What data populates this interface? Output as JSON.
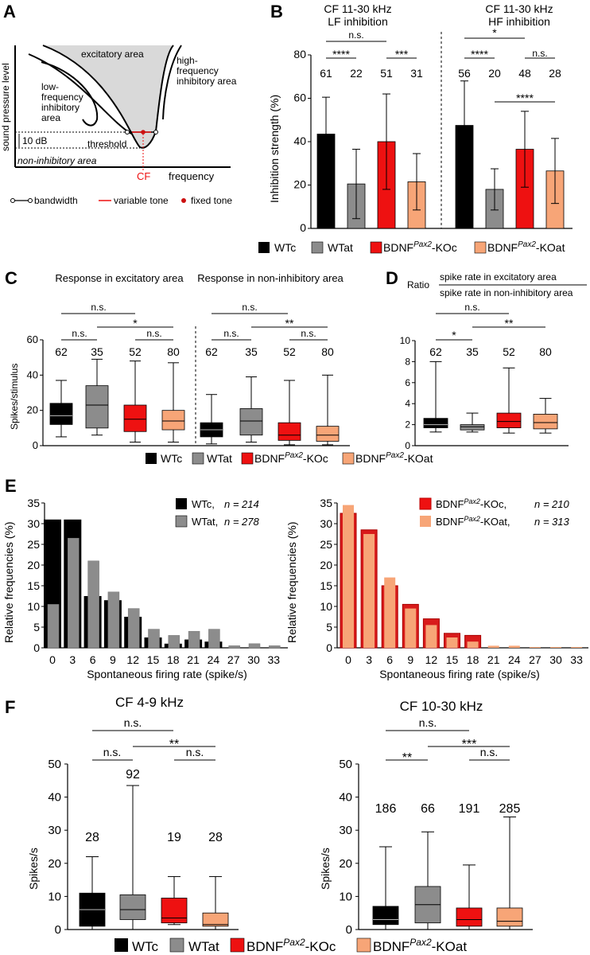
{
  "colors": {
    "wtc": "#000000",
    "wtat": "#8c8c8c",
    "kocon": "#ee1111",
    "koat": "#f7a577",
    "gray_area": "#d9d9d9",
    "grid": "#000000"
  },
  "panelA": {
    "letter": "A",
    "ylabel": "sound pressure level",
    "xlabel": "frequency",
    "excitatory": "excitatory area",
    "hf_line1": "high-",
    "hf_line2": "frequency",
    "hf_line3": "inhibitory area",
    "lf_line1": "low-",
    "lf_line2": "frequency",
    "lf_line3": "inhibitory",
    "lf_line4": "area",
    "threshold": "threshold",
    "db": "10 dB",
    "noninhib": "non-inhibitory area",
    "cf": "CF",
    "leg_bw": "bandwidth",
    "leg_var": "variable tone",
    "leg_fix": "fixed tone"
  },
  "panelB": {
    "letter": "B",
    "t1a": "CF 11-30 kHz",
    "t1b": "LF inhibition",
    "t2a": "CF 11-30 kHz",
    "t2b": "HF inhibition",
    "ylabel": "Inhibition strength (%)",
    "yticks": [
      "0",
      "20",
      "40",
      "60",
      "80"
    ],
    "sig": {
      "ns1": "n.s.",
      "s1": "****",
      "s2": "***",
      "s3": "*",
      "s4": "****",
      "ns2": "n.s.",
      "s5": "****"
    },
    "ns": [
      "61",
      "22",
      "51",
      "31",
      "56",
      "20",
      "48",
      "28"
    ],
    "legend": {
      "wtc": "WTc",
      "wtat": "WTat",
      "koc_pre": "BDNF",
      "koc_sup": "Pax2",
      "koc_post": "-KOc",
      "koat_pre": "BDNF",
      "koat_sup": "Pax2",
      "koat_post": "-KOat"
    }
  },
  "panelC": {
    "letter": "C",
    "t1": "Response in excitatory area",
    "t2": "Response in non-inhibitory area",
    "ylabel": "Spikes/stimulus",
    "yticks": [
      "0",
      "20",
      "40",
      "60"
    ],
    "sig": {
      "a": "n.s.",
      "b": "n.s.",
      "c": "*",
      "d": "n.s.",
      "e": "n.s.",
      "f": "n.s.",
      "g": "**",
      "h": "n.s."
    },
    "ns": [
      "62",
      "35",
      "52",
      "80",
      "62",
      "35",
      "52",
      "80"
    ]
  },
  "panelD": {
    "letter": "D",
    "ratio": "Ratio",
    "num": "spike rate in excitatory area",
    "den": "spike rate in non-inhibitory area",
    "yticks": [
      "0",
      "2",
      "4",
      "6",
      "8",
      "10"
    ],
    "sig": {
      "a": "n.s.",
      "b": "*",
      "c": "**"
    },
    "ns": [
      "62",
      "35",
      "52",
      "80"
    ]
  },
  "legendC": {
    "wtc": "WTc",
    "wtat": "WTat",
    "koc_pre": "BDNF",
    "koc_sup": "Pax2",
    "koc_post": "-KOc",
    "koat_pre": "BDNF",
    "koat_sup": "Pax2",
    "koat_post": "-KOat"
  },
  "panelE": {
    "letter": "E",
    "ylabel": "Relative frequencies (%)",
    "xlabel": "Spontaneous firing rate (spike/s)",
    "left_leg1": "WTc,",
    "left_leg1n": "n = 214",
    "left_leg2": "WTat,",
    "left_leg2n": "n = 278",
    "right_leg1_pre": "BDNF",
    "right_leg1_sup": "Pax2",
    "right_leg1_post": "-KOc,",
    "right_leg1n": "n = 210",
    "right_leg2_pre": "BDNF",
    "right_leg2_sup": "Pax2",
    "right_leg2_post": "-KOat,",
    "right_leg2n": "n = 313",
    "yticks": [
      "0",
      "5",
      "10",
      "15",
      "20",
      "25",
      "30",
      "35"
    ]
  },
  "panelF": {
    "letter": "F",
    "t1": "CF 4-9 kHz",
    "t2": "CF 10-30 kHz",
    "ylabel": "Spikes/s",
    "yticks": [
      "0",
      "10",
      "20",
      "30",
      "40",
      "50"
    ],
    "sig1": {
      "a": "n.s.",
      "b": "n.s.",
      "c": "**",
      "d": "n.s."
    },
    "sig2": {
      "a": "n.s.",
      "b": "**",
      "c": "***",
      "d": "n.s."
    },
    "ns1": [
      "28",
      "92",
      "19",
      "28"
    ],
    "ns2": [
      "186",
      "66",
      "191",
      "285"
    ]
  },
  "legendF": {
    "wtc": "WTc",
    "wtat": "WTat",
    "koc_pre": "BDNF",
    "koc_sup": "Pax2",
    "koc_post": "-KOc",
    "koat_pre": "BDNF",
    "koat_sup": "Pax2",
    "koat_post": "-KOat"
  },
  "chart_data": [
    {
      "type": "bar",
      "title": "CF 11-30 kHz LF inhibition / HF inhibition",
      "ylabel": "Inhibition strength (%)",
      "ylim": [
        0,
        80
      ],
      "categories": [
        "WTc",
        "WTat",
        "BDNF Pax2-KOc",
        "BDNF Pax2-KOat"
      ],
      "series": [
        {
          "name": "LF inhibition",
          "values": [
            43.5,
            20.5,
            40,
            21.5
          ],
          "errors": [
            17,
            16,
            22,
            13
          ],
          "n": [
            61,
            22,
            51,
            31
          ]
        },
        {
          "name": "HF inhibition",
          "values": [
            47.5,
            18,
            36.5,
            26.5
          ],
          "errors": [
            20.5,
            9.5,
            17.5,
            15
          ],
          "n": [
            56,
            20,
            48,
            28
          ]
        }
      ]
    },
    {
      "type": "box",
      "title": "Response in excitatory area",
      "ylabel": "Spikes/stimulus",
      "ylim": [
        0,
        60
      ],
      "categories": [
        "WTc",
        "WTat",
        "BDNF Pax2-KOc",
        "BDNF Pax2-KOat"
      ],
      "boxes": [
        [
          5,
          12,
          17,
          24,
          37
        ],
        [
          6,
          10,
          23,
          34,
          49
        ],
        [
          2,
          8,
          15,
          23,
          48
        ],
        [
          2,
          9,
          14,
          20,
          47
        ]
      ],
      "n": [
        62,
        35,
        52,
        80
      ]
    },
    {
      "type": "box",
      "title": "Response in non-inhibitory area",
      "ylabel": "Spikes/stimulus",
      "ylim": [
        0,
        60
      ],
      "categories": [
        "WTc",
        "WTat",
        "BDNF Pax2-KOc",
        "BDNF Pax2-KOat"
      ],
      "boxes": [
        [
          1,
          5,
          9,
          13,
          29
        ],
        [
          2,
          6,
          14,
          21,
          39
        ],
        [
          0.5,
          3,
          6,
          13,
          37
        ],
        [
          0.5,
          2.5,
          6,
          11,
          40
        ]
      ],
      "n": [
        62,
        35,
        52,
        80
      ]
    },
    {
      "type": "box",
      "title": "Ratio spike rate in excitatory area / spike rate in non-inhibitory area",
      "ylim": [
        0,
        10
      ],
      "categories": [
        "WTc",
        "WTat",
        "BDNF Pax2-KOc",
        "BDNF Pax2-KOat"
      ],
      "boxes": [
        [
          1.3,
          1.7,
          2,
          2.6,
          8
        ],
        [
          1.3,
          1.5,
          1.8,
          2,
          3.1
        ],
        [
          1.2,
          1.7,
          2.3,
          3.1,
          7.4
        ],
        [
          1.2,
          1.6,
          2.2,
          3,
          4.5
        ]
      ],
      "n": [
        62,
        35,
        52,
        80
      ]
    },
    {
      "type": "bar",
      "title": "Spontaneous firing rate WTc vs WTat",
      "xlabel": "Spontaneous firing rate (spike/s)",
      "ylabel": "Relative frequencies (%)",
      "ylim": [
        0,
        35
      ],
      "x": [
        0,
        3,
        6,
        9,
        12,
        15,
        18,
        21,
        24,
        27,
        30,
        33
      ],
      "series": [
        {
          "name": "WTc",
          "n": 214,
          "values": [
            31,
            31,
            12.5,
            11.5,
            7.5,
            2.5,
            1,
            2,
            1.5,
            0,
            0,
            0
          ]
        },
        {
          "name": "WTat",
          "n": 278,
          "values": [
            10.5,
            26.5,
            21,
            13.5,
            9.5,
            4.5,
            3,
            4,
            4.5,
            0.5,
            1,
            0.5
          ]
        }
      ]
    },
    {
      "type": "bar",
      "title": "Spontaneous firing rate BDNF Pax2-KOc vs KOat",
      "xlabel": "Spontaneous firing rate (spike/s)",
      "ylabel": "Relative frequencies (%)",
      "ylim": [
        0,
        35
      ],
      "x": [
        0,
        3,
        6,
        9,
        12,
        15,
        18,
        21,
        24,
        27,
        30,
        33
      ],
      "series": [
        {
          "name": "BDNF Pax2-KOc",
          "n": 210,
          "values": [
            32.5,
            28.5,
            15,
            10.5,
            7,
            3.5,
            3,
            0,
            0,
            0,
            0,
            0
          ]
        },
        {
          "name": "BDNF Pax2-KOat",
          "n": 313,
          "values": [
            34.5,
            27.5,
            17,
            9.5,
            5.5,
            2.5,
            1.5,
            0.5,
            0.5,
            0.2,
            0.2,
            0.2
          ]
        }
      ]
    },
    {
      "type": "box",
      "title": "CF 4-9 kHz",
      "ylabel": "Spikes/s",
      "ylim": [
        0,
        50
      ],
      "categories": [
        "WTc",
        "WTat",
        "BDNF Pax2-KOc",
        "BDNF Pax2-KOat"
      ],
      "boxes": [
        [
          0,
          1,
          6,
          11,
          22
        ],
        [
          0,
          3,
          6,
          10.5,
          43.5
        ],
        [
          1.5,
          2,
          3.5,
          9.5,
          16
        ],
        [
          0,
          1,
          1.5,
          5,
          16
        ]
      ],
      "n": [
        28,
        92,
        19,
        28
      ]
    },
    {
      "type": "box",
      "title": "CF 10-30 kHz",
      "ylabel": "Spikes/s",
      "ylim": [
        0,
        50
      ],
      "categories": [
        "WTc",
        "WTat",
        "BDNF Pax2-KOc",
        "BDNF Pax2-KOat"
      ],
      "boxes": [
        [
          0,
          1.5,
          3,
          7,
          25
        ],
        [
          0,
          2,
          7.5,
          13,
          29.5
        ],
        [
          0,
          1,
          3,
          6.5,
          19.5
        ],
        [
          0,
          1,
          2.5,
          6.5,
          34
        ]
      ],
      "n": [
        186,
        66,
        191,
        285
      ]
    }
  ]
}
